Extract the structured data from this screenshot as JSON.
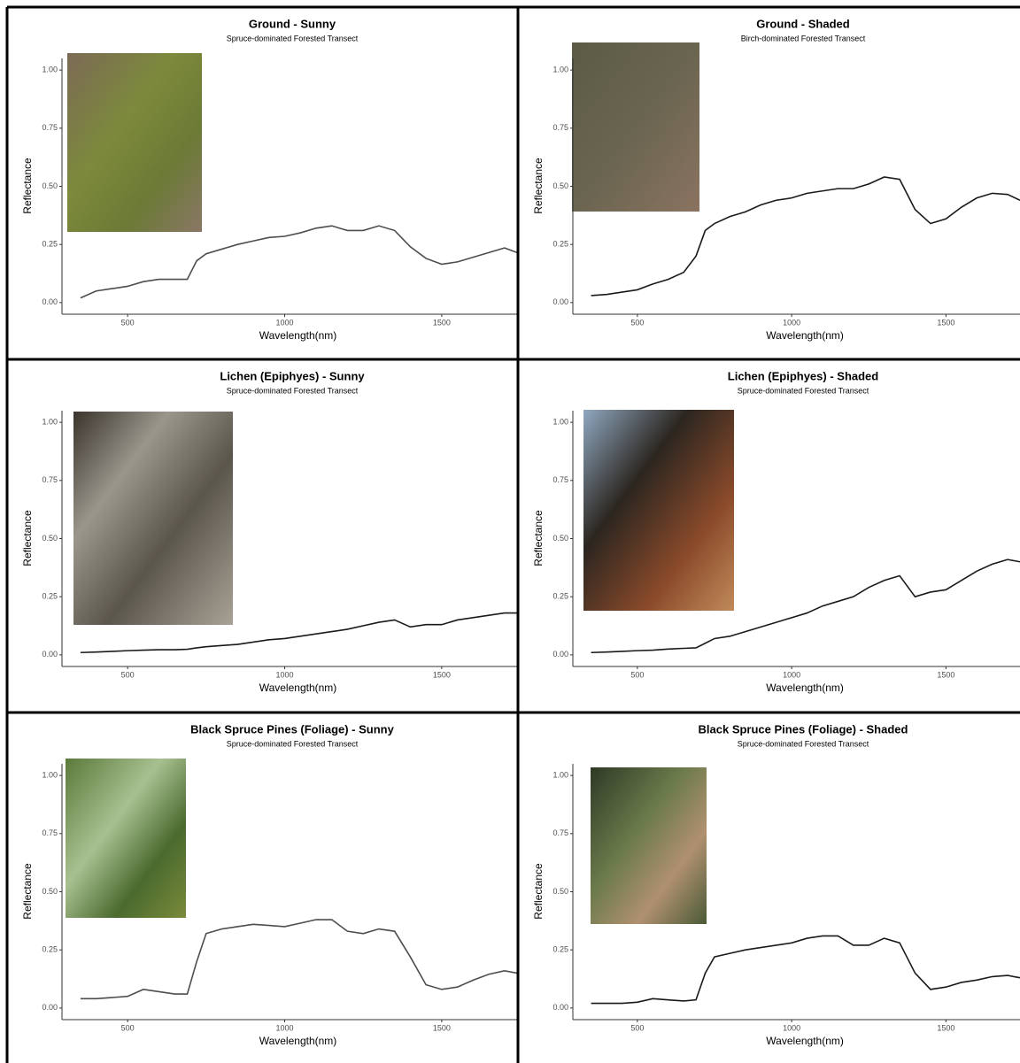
{
  "chart_data": [
    {
      "type": "line",
      "title": "Ground - Sunny",
      "subtitle": "Spruce-dominated Forested Transect",
      "x_label": "Wavelength(nm)",
      "y_label": "Reflectance",
      "color": "#4d4d4d",
      "x": [
        350,
        400,
        450,
        500,
        550,
        600,
        650,
        690,
        720,
        750,
        800,
        850,
        900,
        950,
        1000,
        1050,
        1100,
        1150,
        1200,
        1250,
        1300,
        1350,
        1400,
        1450,
        1500,
        1550,
        1600,
        1650,
        1700,
        1740
      ],
      "values": [
        0.02,
        0.05,
        0.06,
        0.07,
        0.09,
        0.1,
        0.1,
        0.1,
        0.18,
        0.21,
        0.23,
        0.25,
        0.265,
        0.28,
        0.285,
        0.3,
        0.32,
        0.33,
        0.31,
        0.31,
        0.33,
        0.31,
        0.24,
        0.19,
        0.165,
        0.175,
        0.195,
        0.215,
        0.235,
        0.215
      ],
      "xlim": [
        291,
        1740
      ],
      "ylim": [
        -0.05,
        1.05
      ],
      "xticks": [
        500,
        1000,
        1500
      ],
      "yticks": [
        {
          "value": 0,
          "label": "0.00"
        },
        {
          "value": 0.25,
          "label": "0.25"
        },
        {
          "value": 0.5,
          "label": "0.50"
        },
        {
          "value": 0.75,
          "label": "0.75"
        },
        {
          "value": 1,
          "label": "1.00"
        }
      ]
    },
    {
      "type": "line",
      "title": "Ground - Shaded",
      "subtitle": "Birch-dominated Forested Transect",
      "x_label": "Wavelength(nm)",
      "y_label": "Reflectance",
      "color": "#1a1a1a",
      "x": [
        350,
        400,
        450,
        500,
        550,
        600,
        650,
        690,
        720,
        750,
        800,
        850,
        900,
        950,
        1000,
        1050,
        1100,
        1150,
        1200,
        1250,
        1300,
        1350,
        1400,
        1450,
        1500,
        1550,
        1600,
        1650,
        1700,
        1740
      ],
      "values": [
        0.03,
        0.035,
        0.045,
        0.055,
        0.08,
        0.1,
        0.13,
        0.2,
        0.31,
        0.34,
        0.37,
        0.39,
        0.42,
        0.44,
        0.45,
        0.47,
        0.48,
        0.49,
        0.49,
        0.51,
        0.54,
        0.53,
        0.4,
        0.34,
        0.36,
        0.41,
        0.45,
        0.47,
        0.465,
        0.44
      ],
      "xlim": [
        291,
        1740
      ],
      "ylim": [
        -0.05,
        1.05
      ],
      "xticks": [
        500,
        1000,
        1500
      ],
      "yticks": [
        {
          "value": 0,
          "label": "0.00"
        },
        {
          "value": 0.25,
          "label": "0.25"
        },
        {
          "value": 0.5,
          "label": "0.50"
        },
        {
          "value": 0.75,
          "label": "0.75"
        },
        {
          "value": 1,
          "label": "1.00"
        }
      ]
    },
    {
      "type": "line",
      "title": "Lichen (Epiphyes) - Sunny",
      "subtitle": "Spruce-dominated Forested Transect",
      "x_label": "Wavelength(nm)",
      "y_label": "Reflectance",
      "color": "#1a1a1a",
      "x": [
        350,
        400,
        450,
        500,
        550,
        600,
        650,
        690,
        720,
        750,
        800,
        850,
        900,
        950,
        1000,
        1050,
        1100,
        1150,
        1200,
        1250,
        1300,
        1350,
        1400,
        1450,
        1500,
        1550,
        1600,
        1650,
        1700,
        1740
      ],
      "values": [
        0.01,
        0.012,
        0.015,
        0.018,
        0.02,
        0.022,
        0.022,
        0.024,
        0.03,
        0.035,
        0.04,
        0.045,
        0.055,
        0.065,
        0.07,
        0.08,
        0.09,
        0.1,
        0.11,
        0.125,
        0.14,
        0.15,
        0.12,
        0.13,
        0.13,
        0.15,
        0.16,
        0.17,
        0.18,
        0.18
      ],
      "xlim": [
        291,
        1740
      ],
      "ylim": [
        -0.05,
        1.05
      ],
      "xticks": [
        500,
        1000,
        1500
      ],
      "yticks": [
        {
          "value": 0,
          "label": "0.00"
        },
        {
          "value": 0.25,
          "label": "0.25"
        },
        {
          "value": 0.5,
          "label": "0.50"
        },
        {
          "value": 0.75,
          "label": "0.75"
        },
        {
          "value": 1,
          "label": "1.00"
        }
      ]
    },
    {
      "type": "line",
      "title": "Lichen (Epiphyes) - Shaded",
      "subtitle": "Spruce-dominated Forested Transect",
      "x_label": "Wavelength(nm)",
      "y_label": "Reflectance",
      "color": "#1a1a1a",
      "x": [
        350,
        400,
        450,
        500,
        550,
        600,
        650,
        690,
        720,
        750,
        800,
        850,
        900,
        950,
        1000,
        1050,
        1100,
        1150,
        1200,
        1250,
        1300,
        1350,
        1400,
        1450,
        1500,
        1550,
        1600,
        1650,
        1700,
        1740
      ],
      "values": [
        0.01,
        0.012,
        0.015,
        0.018,
        0.02,
        0.025,
        0.028,
        0.03,
        0.05,
        0.07,
        0.08,
        0.1,
        0.12,
        0.14,
        0.16,
        0.18,
        0.21,
        0.23,
        0.25,
        0.29,
        0.32,
        0.34,
        0.25,
        0.27,
        0.28,
        0.32,
        0.36,
        0.39,
        0.41,
        0.4
      ],
      "xlim": [
        291,
        1740
      ],
      "ylim": [
        -0.05,
        1.05
      ],
      "xticks": [
        500,
        1000,
        1500
      ],
      "yticks": [
        {
          "value": 0,
          "label": "0.00"
        },
        {
          "value": 0.25,
          "label": "0.25"
        },
        {
          "value": 0.5,
          "label": "0.50"
        },
        {
          "value": 0.75,
          "label": "0.75"
        },
        {
          "value": 1,
          "label": "1.00"
        }
      ]
    },
    {
      "type": "line",
      "title": "Black Spruce Pines (Foliage) - Sunny",
      "subtitle": "Spruce-dominated Forested Transect",
      "x_label": "Wavelength(nm)",
      "y_label": "Reflectance",
      "color": "#4d4d4d",
      "x": [
        350,
        400,
        450,
        500,
        550,
        600,
        650,
        690,
        720,
        750,
        800,
        850,
        900,
        950,
        1000,
        1050,
        1100,
        1150,
        1200,
        1250,
        1300,
        1350,
        1400,
        1450,
        1500,
        1550,
        1600,
        1650,
        1700,
        1740
      ],
      "values": [
        0.04,
        0.04,
        0.045,
        0.05,
        0.08,
        0.07,
        0.06,
        0.06,
        0.2,
        0.32,
        0.34,
        0.35,
        0.36,
        0.355,
        0.35,
        0.365,
        0.38,
        0.38,
        0.33,
        0.32,
        0.34,
        0.33,
        0.22,
        0.1,
        0.08,
        0.09,
        0.12,
        0.145,
        0.16,
        0.15
      ],
      "xlim": [
        291,
        1740
      ],
      "ylim": [
        -0.05,
        1.05
      ],
      "xticks": [
        500,
        1000,
        1500
      ],
      "yticks": [
        {
          "value": 0,
          "label": "0.00"
        },
        {
          "value": 0.25,
          "label": "0.25"
        },
        {
          "value": 0.5,
          "label": "0.50"
        },
        {
          "value": 0.75,
          "label": "0.75"
        },
        {
          "value": 1,
          "label": "1.00"
        }
      ]
    },
    {
      "type": "line",
      "title": "Black Spruce Pines (Foliage) - Shaded",
      "subtitle": "Spruce-dominated Forested Transect",
      "x_label": "Wavelength(nm)",
      "y_label": "Reflectance",
      "color": "#1a1a1a",
      "x": [
        350,
        400,
        450,
        500,
        550,
        600,
        650,
        690,
        720,
        750,
        800,
        850,
        900,
        950,
        1000,
        1050,
        1100,
        1150,
        1200,
        1250,
        1300,
        1350,
        1400,
        1450,
        1500,
        1550,
        1600,
        1650,
        1700,
        1740
      ],
      "values": [
        0.02,
        0.02,
        0.02,
        0.025,
        0.04,
        0.035,
        0.03,
        0.035,
        0.15,
        0.22,
        0.235,
        0.25,
        0.26,
        0.27,
        0.28,
        0.3,
        0.31,
        0.31,
        0.27,
        0.27,
        0.3,
        0.28,
        0.15,
        0.08,
        0.09,
        0.11,
        0.12,
        0.135,
        0.14,
        0.13
      ],
      "xlim": [
        291,
        1740
      ],
      "ylim": [
        -0.05,
        1.05
      ],
      "xticks": [
        500,
        1000,
        1500
      ],
      "yticks": [
        {
          "value": 0,
          "label": "0.00"
        },
        {
          "value": 0.25,
          "label": "0.25"
        },
        {
          "value": 0.5,
          "label": "0.50"
        },
        {
          "value": 0.75,
          "label": "0.75"
        },
        {
          "value": 1,
          "label": "1.00"
        }
      ]
    }
  ]
}
